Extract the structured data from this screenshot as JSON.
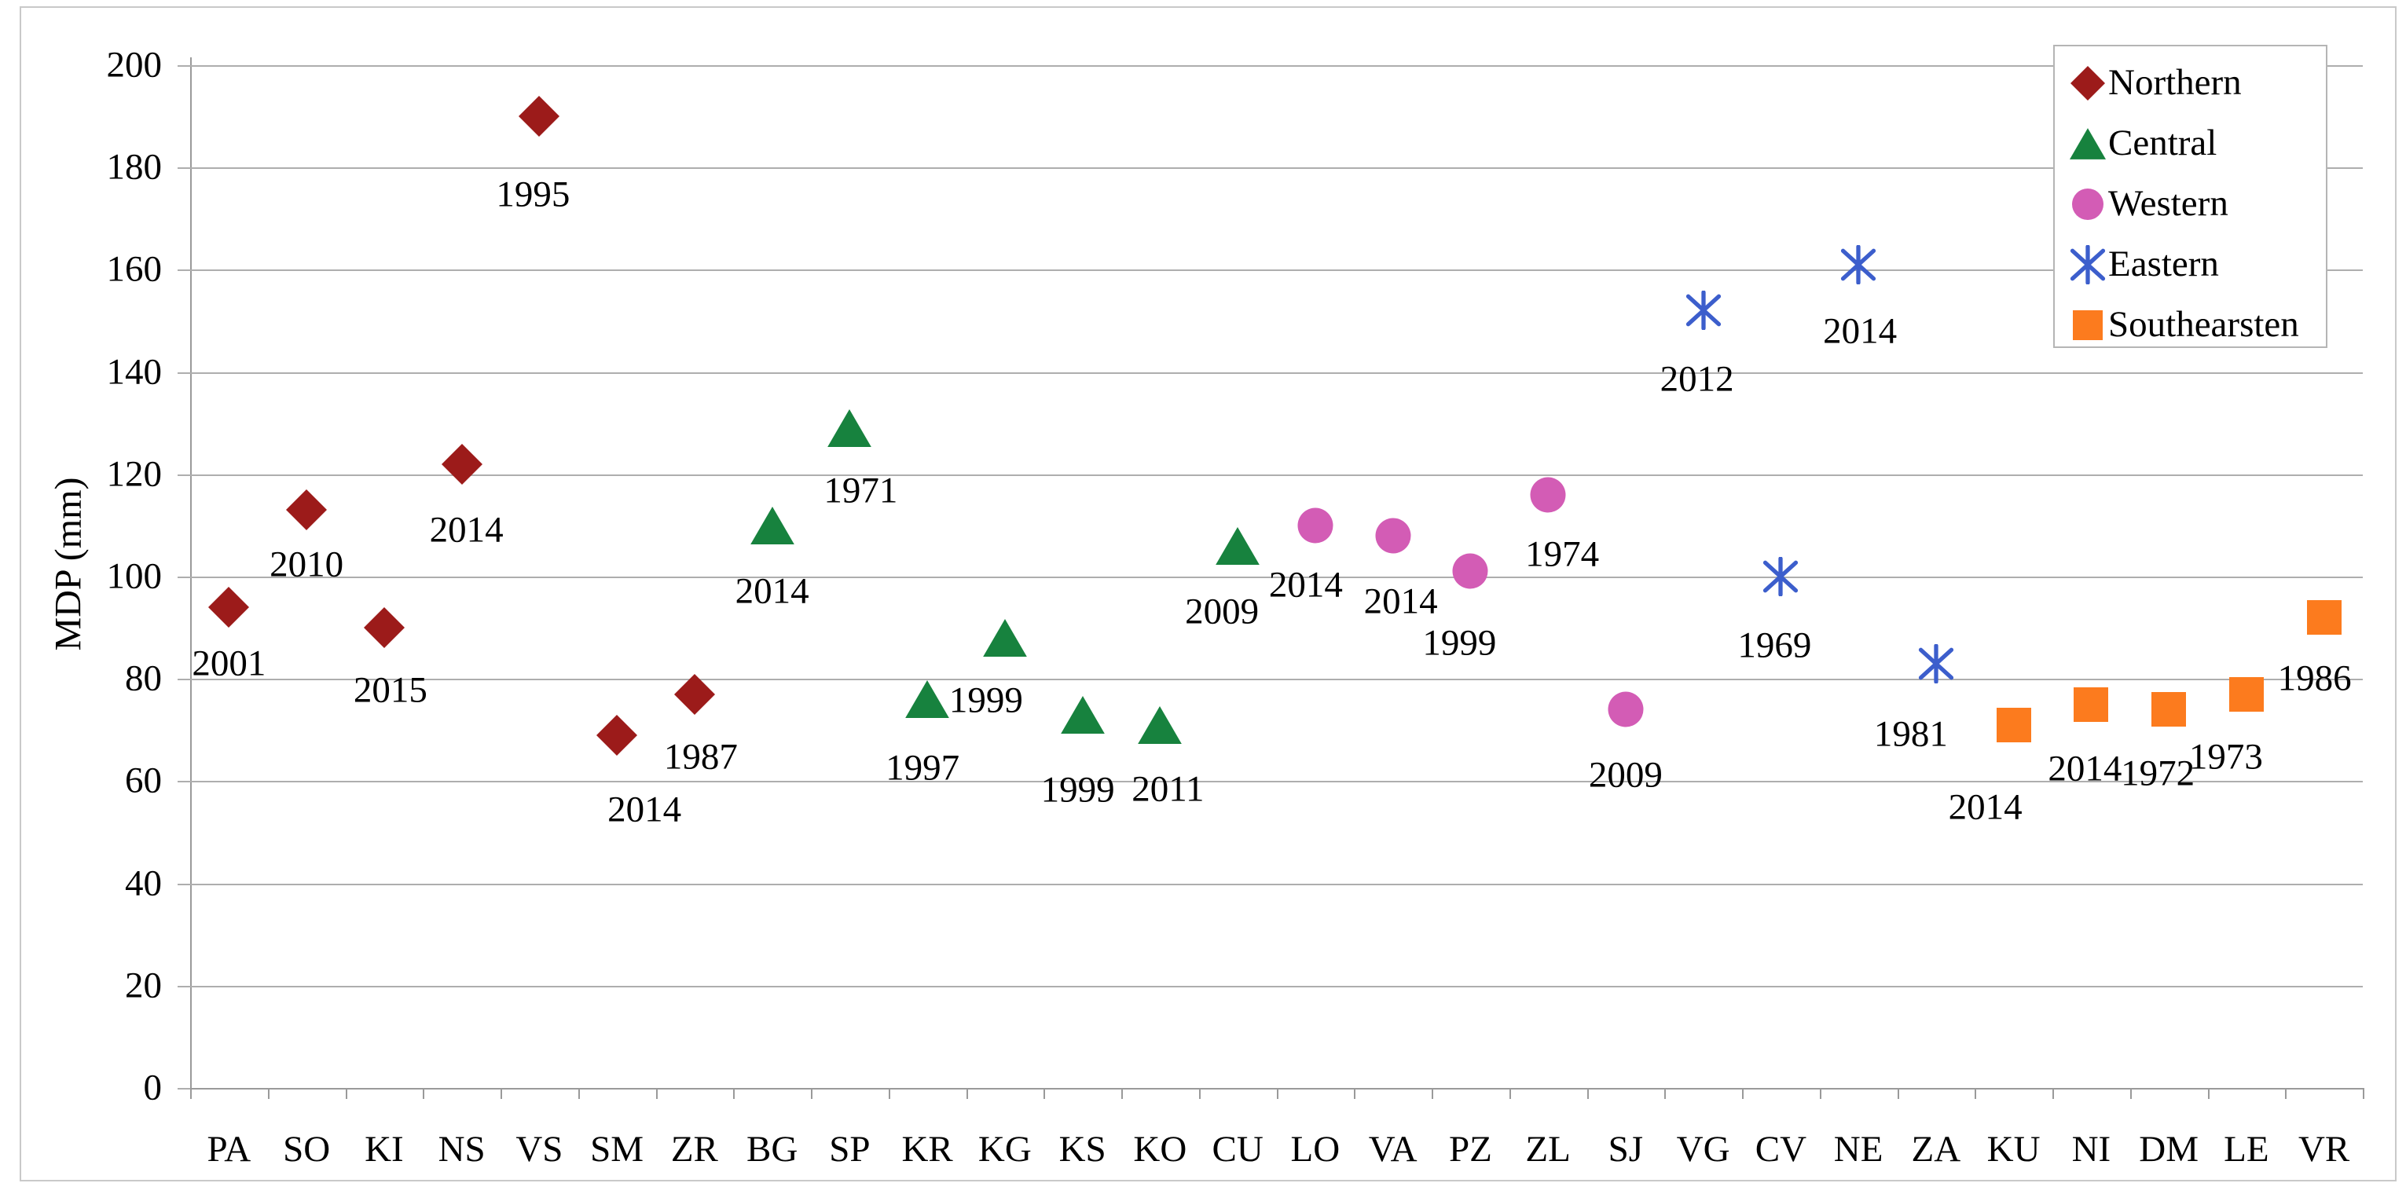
{
  "chart_data": {
    "type": "scatter",
    "title": "",
    "xlabel": "",
    "ylabel": "MDP (mm)",
    "ylim": [
      0,
      200
    ],
    "ytick_step": 20,
    "yticks": [
      0,
      20,
      40,
      60,
      80,
      100,
      120,
      140,
      160,
      180,
      200
    ],
    "grid": true,
    "legend_position": "top-right",
    "categories": [
      "PA",
      "SO",
      "KI",
      "NS",
      "VS",
      "SM",
      "ZR",
      "BG",
      "SP",
      "KR",
      "KG",
      "KS",
      "KO",
      "CU",
      "LO",
      "VA",
      "PZ",
      "ZL",
      "SJ",
      "VG",
      "CV",
      "NE",
      "ZA",
      "KU",
      "NI",
      "DM",
      "LE",
      "VR"
    ],
    "series": [
      {
        "name": "Northern",
        "marker": "diamond",
        "color": "#9c1b1a",
        "points": [
          {
            "station": "PA",
            "value": 94,
            "year": "2001",
            "dx": 0,
            "dy": 72
          },
          {
            "station": "SO",
            "value": 113,
            "year": "2010",
            "dx": 0,
            "dy": 70
          },
          {
            "station": "KI",
            "value": 90,
            "year": "2015",
            "dx": 8,
            "dy": 80
          },
          {
            "station": "NS",
            "value": 122,
            "year": "2014",
            "dx": 6,
            "dy": 84
          },
          {
            "station": "VS",
            "value": 190,
            "year": "1995",
            "dx": -8,
            "dy": 100
          },
          {
            "station": "SM",
            "value": 69,
            "year": "2014",
            "dx": 35,
            "dy": 95
          },
          {
            "station": "ZR",
            "value": 77,
            "year": "1987",
            "dx": 8,
            "dy": 80
          }
        ]
      },
      {
        "name": "Central",
        "marker": "triangle",
        "color": "#17823e",
        "points": [
          {
            "station": "BG",
            "value": 110,
            "year": "2014",
            "dx": 0,
            "dy": 84
          },
          {
            "station": "SP",
            "value": 129,
            "year": "1971",
            "dx": 14,
            "dy": 80
          },
          {
            "station": "KR",
            "value": 76,
            "year": "1997",
            "dx": -6,
            "dy": 88
          },
          {
            "station": "KG",
            "value": 88,
            "year": "1999",
            "dx": -24,
            "dy": 80
          },
          {
            "station": "KS",
            "value": 73,
            "year": "1999",
            "dx": -6,
            "dy": 96
          },
          {
            "station": "KO",
            "value": 71,
            "year": "2011",
            "dx": 10,
            "dy": 82
          },
          {
            "station": "CU",
            "value": 106,
            "year": "2009",
            "dx": -20,
            "dy": 84
          }
        ]
      },
      {
        "name": "Western",
        "marker": "circle",
        "color": "#d35cb5",
        "points": [
          {
            "station": "LO",
            "value": 110,
            "year": "2014",
            "dx": -12,
            "dy": 76
          },
          {
            "station": "VA",
            "value": 108,
            "year": "2014",
            "dx": 10,
            "dy": 84
          },
          {
            "station": "PZ",
            "value": 101,
            "year": "1999",
            "dx": -14,
            "dy": 92
          },
          {
            "station": "ZL",
            "value": 116,
            "year": "1974",
            "dx": 18,
            "dy": 76
          },
          {
            "station": "SJ",
            "value": 74,
            "year": "2009",
            "dx": 0,
            "dy": 84
          }
        ]
      },
      {
        "name": "Eastern",
        "marker": "asterisk",
        "color": "#3c5ecc",
        "points": [
          {
            "station": "VG",
            "value": 152,
            "year": "2012",
            "dx": -8,
            "dy": 88
          },
          {
            "station": "CV",
            "value": 100,
            "year": "1969",
            "dx": -8,
            "dy": 88
          },
          {
            "station": "NE",
            "value": 161,
            "year": "2014",
            "dx": 2,
            "dy": 85
          },
          {
            "station": "ZA",
            "value": 83,
            "year": "1981",
            "dx": -32,
            "dy": 90
          }
        ]
      },
      {
        "name": "Southearsten",
        "marker": "square",
        "color": "#fc7b1e",
        "points": [
          {
            "station": "KU",
            "value": 71,
            "year": "2014",
            "dx": -36,
            "dy": 105
          },
          {
            "station": "NI",
            "value": 75,
            "year": "2014",
            "dx": -8,
            "dy": 82
          },
          {
            "station": "DM",
            "value": 74,
            "year": "1972",
            "dx": -14,
            "dy": 82
          },
          {
            "station": "LE",
            "value": 77,
            "year": "1973",
            "dx": -26,
            "dy": 80
          },
          {
            "station": "VR",
            "value": 92,
            "year": "1986",
            "dx": -12,
            "dy": 78
          }
        ]
      }
    ],
    "legend_entries": [
      "Northern",
      "Central",
      "Western",
      "Eastern",
      "Southearsten"
    ]
  },
  "style": {
    "gridline_color": "#aeaeae",
    "axis_color": "#9a9a9a",
    "border_color": "#c9c9c9",
    "text_color": "#000000",
    "background": "#ffffff"
  }
}
